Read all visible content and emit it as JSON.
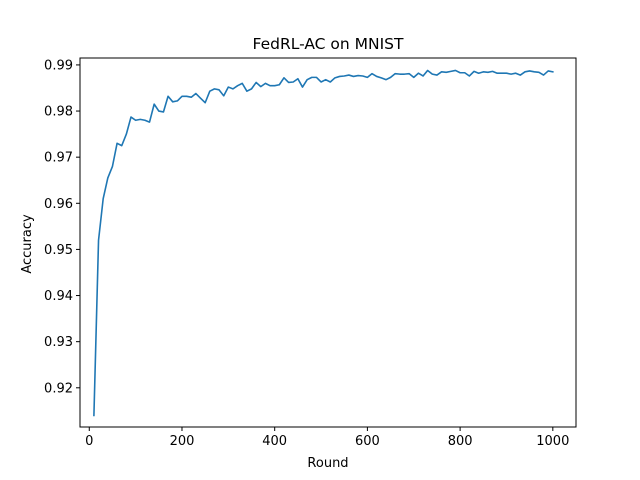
{
  "chart_data": {
    "type": "line",
    "title": "FedRL-AC on MNIST",
    "xlabel": "Round",
    "ylabel": "Accuracy",
    "xlim": [
      -20,
      1050
    ],
    "ylim": [
      0.9115,
      0.9915
    ],
    "xticks": [
      0,
      200,
      400,
      600,
      800,
      1000
    ],
    "xtick_labels": [
      "0",
      "200",
      "400",
      "600",
      "800",
      "1000"
    ],
    "yticks": [
      0.92,
      0.93,
      0.94,
      0.95,
      0.96,
      0.97,
      0.98,
      0.99
    ],
    "ytick_labels": [
      "0.92",
      "0.93",
      "0.94",
      "0.95",
      "0.96",
      "0.97",
      "0.98",
      "0.99"
    ],
    "grid": false,
    "color": "#1f77b4",
    "series": [
      {
        "x": [
          10,
          20,
          30,
          40,
          50,
          60,
          70,
          80,
          90,
          100,
          110,
          120,
          130,
          140,
          150,
          160,
          170,
          180,
          190,
          200,
          210,
          220,
          230,
          240,
          250,
          260,
          270,
          280,
          290,
          300,
          310,
          320,
          330,
          340,
          350,
          360,
          370,
          380,
          390,
          400,
          410,
          420,
          430,
          440,
          450,
          460,
          470,
          480,
          490,
          500,
          510,
          520,
          530,
          540,
          550,
          560,
          570,
          580,
          590,
          600,
          610,
          620,
          630,
          640,
          650,
          660,
          670,
          680,
          690,
          700,
          710,
          720,
          730,
          740,
          750,
          760,
          770,
          780,
          790,
          800,
          810,
          820,
          830,
          840,
          850,
          860,
          870,
          880,
          890,
          900,
          910,
          920,
          930,
          940,
          950,
          960,
          970,
          980,
          990,
          1000
        ],
        "y": [
          0.914,
          0.952,
          0.961,
          0.9655,
          0.968,
          0.973,
          0.9725,
          0.975,
          0.9787,
          0.978,
          0.9782,
          0.978,
          0.9776,
          0.9815,
          0.98,
          0.9798,
          0.9832,
          0.982,
          0.9822,
          0.9832,
          0.9832,
          0.983,
          0.9838,
          0.9828,
          0.9818,
          0.9843,
          0.9848,
          0.9846,
          0.9833,
          0.9852,
          0.9848,
          0.9855,
          0.986,
          0.9843,
          0.9848,
          0.9862,
          0.9853,
          0.986,
          0.9855,
          0.9855,
          0.9857,
          0.9872,
          0.9862,
          0.9863,
          0.987,
          0.9852,
          0.9868,
          0.9873,
          0.9873,
          0.9863,
          0.9868,
          0.9863,
          0.9872,
          0.9875,
          0.9876,
          0.9878,
          0.9875,
          0.9877,
          0.9876,
          0.9873,
          0.9881,
          0.9875,
          0.9872,
          0.9868,
          0.9873,
          0.9881,
          0.988,
          0.988,
          0.9881,
          0.9873,
          0.9882,
          0.9876,
          0.9888,
          0.988,
          0.9878,
          0.9885,
          0.9884,
          0.9886,
          0.9888,
          0.9883,
          0.9883,
          0.9876,
          0.9886,
          0.9882,
          0.9885,
          0.9884,
          0.9886,
          0.9882,
          0.9882,
          0.9882,
          0.988,
          0.9882,
          0.9878,
          0.9885,
          0.9887,
          0.9885,
          0.9884,
          0.9878,
          0.9887,
          0.9885
        ]
      }
    ]
  }
}
